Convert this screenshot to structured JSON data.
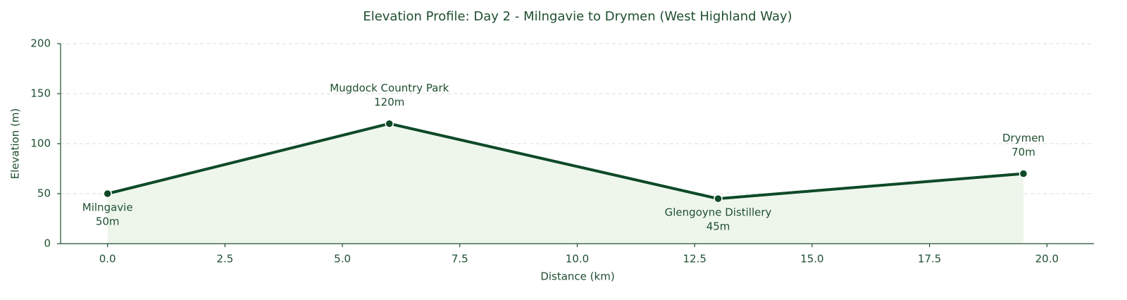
{
  "chart_data": {
    "type": "line",
    "title": "Elevation Profile: Day 2 - Milngavie to Drymen (West Highland Way)",
    "x_label": "Distance (km)",
    "y_label": "Elevation (m)",
    "x": [
      0,
      6,
      13,
      19.5
    ],
    "values": [
      50,
      120,
      45,
      70
    ],
    "point_labels": [
      "Milngavie",
      "Mugdock Country Park",
      "Glengoyne Distillery",
      "Drymen"
    ],
    "value_labels": [
      "50m",
      "120m",
      "45m",
      "70m"
    ],
    "color": "#0e4a28",
    "fill_color": "#eef6ec",
    "xlim": [
      -1,
      21
    ],
    "xticks": [
      {
        "value": 0,
        "label": "0.0"
      },
      {
        "value": 2.5,
        "label": "2.5"
      },
      {
        "value": 5,
        "label": "5.0"
      },
      {
        "value": 7.5,
        "label": "7.5"
      },
      {
        "value": 10,
        "label": "10.0"
      },
      {
        "value": 12.5,
        "label": "12.5"
      },
      {
        "value": 15,
        "label": "15.0"
      },
      {
        "value": 17.5,
        "label": "17.5"
      },
      {
        "value": 20,
        "label": "20.0"
      }
    ],
    "ylim": [
      0,
      200
    ],
    "yticks": [
      0,
      50,
      100,
      150,
      200
    ],
    "grid": true
  }
}
